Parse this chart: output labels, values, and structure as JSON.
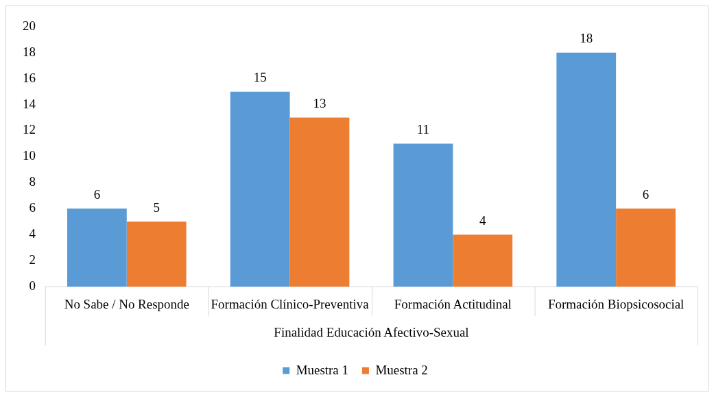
{
  "chart_data": {
    "type": "bar",
    "xlabel": "Finalidad Educación Afectivo-Sexual",
    "categories": [
      "No Sabe / No Responde",
      "Formación Clínico-Preventiva",
      "Formación Actitudinal",
      "Formación Biopsicosocial"
    ],
    "series": [
      {
        "name": "Muestra 1",
        "color": "#5b9bd5",
        "values": [
          6,
          15,
          11,
          18
        ]
      },
      {
        "name": "Muestra 2",
        "color": "#ed7d31",
        "values": [
          5,
          13,
          4,
          6
        ]
      }
    ],
    "ylim": [
      0,
      20
    ],
    "yticks": [
      0,
      2,
      4,
      6,
      8,
      10,
      12,
      14,
      16,
      18,
      20
    ],
    "grid": false,
    "legend": "bottom",
    "data_labels": true
  }
}
